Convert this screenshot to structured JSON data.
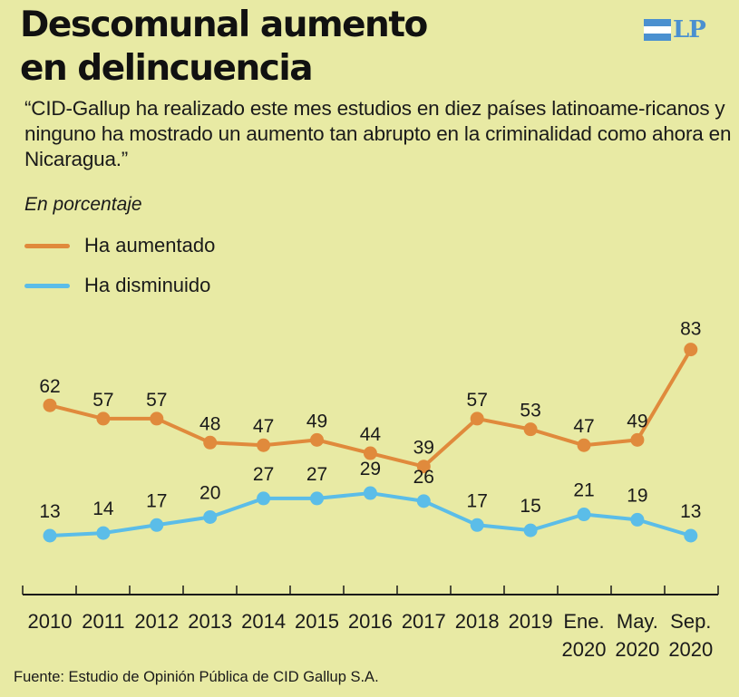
{
  "header": {
    "title_line1": "Descomunal aumento",
    "title_line2": "en delincuencia",
    "logo_text": "LP"
  },
  "quote": "“CID-Gallup ha realizado este mes estudios en diez países latinoame-ricanos y ninguno ha mostrado un aumento tan abrupto en la criminalidad como ahora en Nicaragua.”",
  "subtitle": "En porcentaje",
  "source": "Fuente: Estudio de Opinión Pública de CID Gallup S.A.",
  "colors": {
    "background": "#e8eaa4",
    "aumentado": "#e08a3c",
    "disminuido": "#5bbde8",
    "axis": "#1a1a1a"
  },
  "chart_data": {
    "type": "line",
    "categories": [
      [
        "2010"
      ],
      [
        "2011"
      ],
      [
        "2012"
      ],
      [
        "2013"
      ],
      [
        "2014"
      ],
      [
        "2015"
      ],
      [
        "2016"
      ],
      [
        "2017"
      ],
      [
        "2018"
      ],
      [
        "2019"
      ],
      [
        "Ene.",
        "2020"
      ],
      [
        "May.",
        "2020"
      ],
      [
        "Sep.",
        "2020"
      ]
    ],
    "series": [
      {
        "name": "Ha aumentado",
        "color": "#e08a3c",
        "values": [
          62,
          57,
          57,
          48,
          47,
          49,
          44,
          39,
          57,
          53,
          47,
          49,
          83
        ]
      },
      {
        "name": "Ha disminuido",
        "color": "#5bbde8",
        "values": [
          13,
          14,
          17,
          20,
          27,
          27,
          29,
          26,
          17,
          15,
          21,
          19,
          13
        ]
      }
    ],
    "ylim": [
      0,
      100
    ],
    "grid": false,
    "legend": "top-left",
    "ylabel": "En porcentaje"
  }
}
